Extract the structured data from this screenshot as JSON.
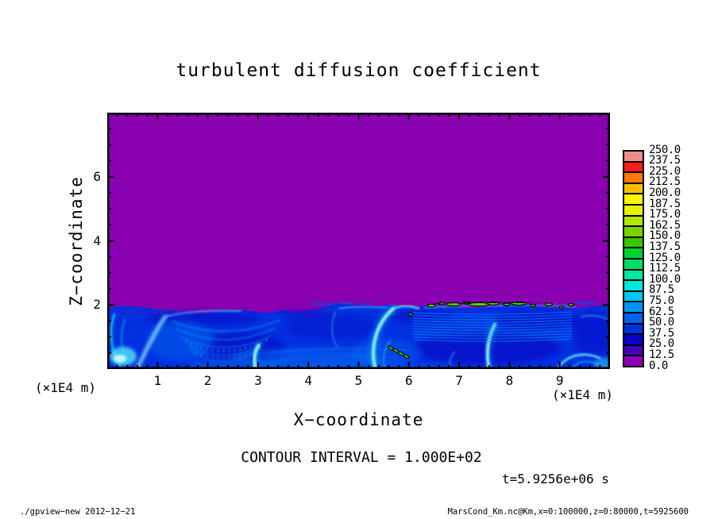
{
  "title": "turbulent diffusion coefficient",
  "colors": {
    "background": "#ffffff",
    "frame": "#000000",
    "field_purple": "#8800B0",
    "field_blue": "#0130E0",
    "palette_bottom_to_top": [
      "#8C00B4",
      "#4100B9",
      "#0A00C8",
      "#0032DC",
      "#0064F0",
      "#0096F5",
      "#00C8F0",
      "#00E6DC",
      "#00E6A0",
      "#00DC64",
      "#00D232",
      "#32C800",
      "#78D200",
      "#B4E600",
      "#E6F000",
      "#FFF500",
      "#FFBE00",
      "#FF7800",
      "#F51E1E",
      "#F08C8C"
    ]
  },
  "axes": {
    "x": {
      "title": "X−coordinate",
      "unit": "(×1E4 m)",
      "tick_labels": [
        "1",
        "2",
        "3",
        "4",
        "5",
        "6",
        "7",
        "8",
        "9"
      ],
      "range_min": 0,
      "range_max": 10
    },
    "z": {
      "title": "Z−coordinate",
      "unit": "(×1E4 m)",
      "tick_labels": [
        "2",
        "4",
        "6"
      ],
      "range_min": 0,
      "range_max": 8
    }
  },
  "colorbar": {
    "tick_labels_top_to_bottom": [
      "250.0",
      "237.5",
      "225.0",
      "212.5",
      "200.0",
      "187.5",
      "175.0",
      "162.5",
      "150.0",
      "137.5",
      "125.0",
      "112.5",
      "100.0",
      "87.5",
      "75.0",
      "62.5",
      "50.0",
      "37.5",
      "25.0",
      "12.5",
      "0.0"
    ]
  },
  "annotations": {
    "contour_interval": "CONTOUR INTERVAL = 1.000E+02",
    "timestamp": "t=5.9256e+06 s"
  },
  "footer": {
    "left": "./gpview−new  2012−12−21",
    "right": "MarsCond_Km.nc@Km,x=0:100000,z=0:80000,t=5925600"
  },
  "chart_data": {
    "type": "heatmap",
    "title": "turbulent diffusion coefficient",
    "xlabel": "X-coordinate (x1E4 m)",
    "ylabel": "Z-coordinate (x1E4 m)",
    "x_range": [
      0,
      10
    ],
    "z_range": [
      0,
      8
    ],
    "x_ticks": [
      1,
      2,
      3,
      4,
      5,
      6,
      7,
      8,
      9
    ],
    "z_ticks": [
      2,
      4,
      6
    ],
    "value_levels": [
      0.0,
      12.5,
      25.0,
      37.5,
      50.0,
      62.5,
      75.0,
      87.5,
      100.0,
      112.5,
      125.0,
      137.5,
      150.0,
      162.5,
      175.0,
      187.5,
      200.0,
      212.5,
      225.0,
      237.5,
      250.0
    ],
    "palette_bottom_to_top": [
      "#8C00B4",
      "#4100B9",
      "#0A00C8",
      "#0032DC",
      "#0064F0",
      "#0096F5",
      "#00C8F0",
      "#00E6DC",
      "#00E6A0",
      "#00DC64",
      "#00D232",
      "#32C800",
      "#78D200",
      "#B4E600",
      "#E6F000",
      "#FFF500",
      "#FFBE00",
      "#FF7800",
      "#F51E1E",
      "#F08C8C"
    ],
    "contour_interval": 100,
    "time_seconds": 5925600,
    "field_description": [
      "Value ~0 (purple 0-12.5 bin) everywhere above z ~ 2e4 m",
      "Turbulent boundary layer below z ~ 2e4 m: mostly 25-75 (blues) with darker 12.5-25 patches",
      "Bright cyan filaments (75-100) form swirls and rising plumes near x ~ 0.5, 1, 3, 5.5, 7.6 (x1E4 m)",
      "Fine horizontal striping in the layer top between x ~ 6 and 9 (x1E4 m)",
      "Isolated pockets >= 100 (green, outlined by the 100-level black contour) along the layer top between x ~ 6.3 and 9.3, plus a diagonal train of specks near x ~ 5.7, z ~ 0.5"
    ]
  }
}
